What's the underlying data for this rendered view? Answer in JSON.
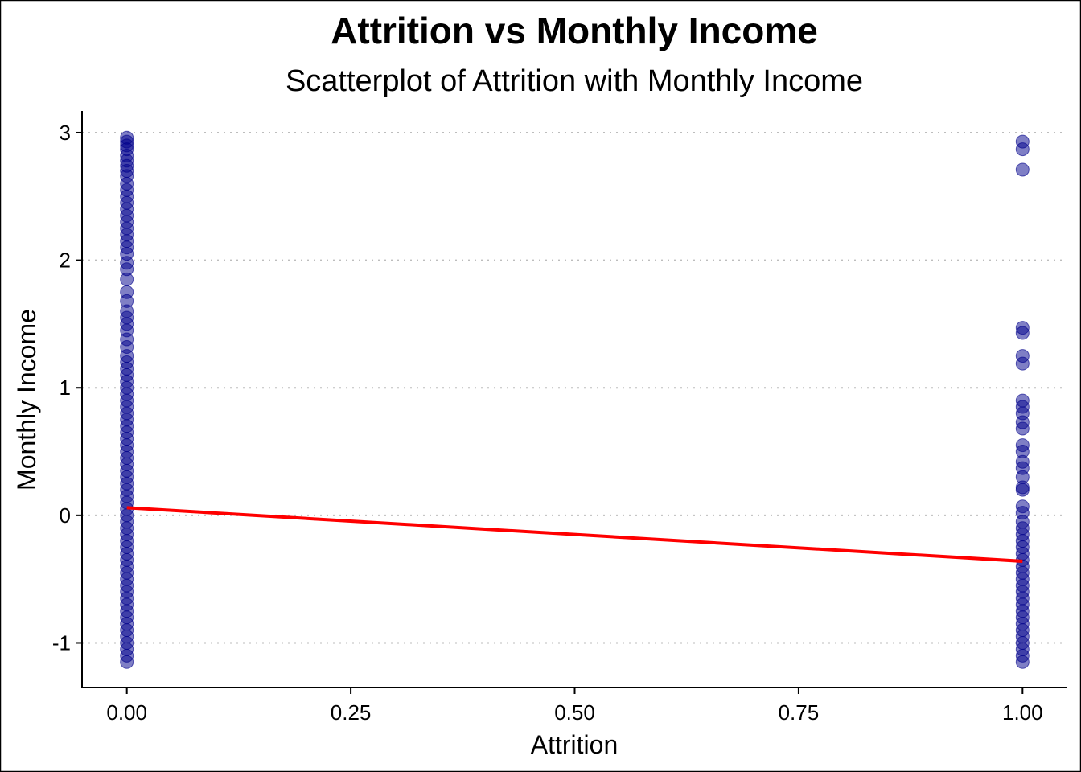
{
  "chart_data": {
    "type": "scatter",
    "title": "Attrition vs Monthly Income",
    "subtitle": "Scatterplot of Attrition with Monthly Income",
    "xlabel": "Attrition",
    "ylabel": "Monthly Income",
    "xlim": [
      -0.05,
      1.05
    ],
    "ylim": [
      -1.35,
      3.17
    ],
    "x_ticks": [
      0,
      0.25,
      0.5,
      0.75,
      1
    ],
    "x_tick_labels": [
      "0.00",
      "0.25",
      "0.50",
      "0.75",
      "1.00"
    ],
    "y_ticks": [
      -1,
      0,
      1,
      2,
      3
    ],
    "y_tick_labels": [
      "-1",
      "0",
      "1",
      "2",
      "3"
    ],
    "grid": "horizontal dotted",
    "point_color": "#00008B",
    "trend_color": "#FF0000",
    "series": [
      {
        "x_value": 0,
        "y": [
          2.96,
          2.93,
          2.9,
          2.87,
          2.82,
          2.78,
          2.74,
          2.7,
          2.66,
          2.6,
          2.55,
          2.5,
          2.45,
          2.4,
          2.35,
          2.3,
          2.25,
          2.2,
          2.15,
          2.1,
          2.05,
          1.98,
          1.93,
          1.85,
          1.75,
          1.68,
          1.6,
          1.55,
          1.5,
          1.45,
          1.38,
          1.32,
          1.25,
          1.2,
          1.15,
          1.1,
          1.05,
          1.0,
          0.95,
          0.9,
          0.85,
          0.8,
          0.75,
          0.7,
          0.65,
          0.6,
          0.55,
          0.5,
          0.45,
          0.4,
          0.35,
          0.3,
          0.25,
          0.2,
          0.15,
          0.1,
          0.05,
          0.0,
          -0.05,
          -0.1,
          -0.15,
          -0.2,
          -0.25,
          -0.3,
          -0.35,
          -0.4,
          -0.45,
          -0.5,
          -0.55,
          -0.6,
          -0.65,
          -0.7,
          -0.75,
          -0.8,
          -0.85,
          -0.9,
          -0.95,
          -1.0,
          -1.05,
          -1.1,
          -1.15
        ]
      },
      {
        "x_value": 1,
        "y": [
          2.93,
          2.87,
          2.71,
          1.47,
          1.43,
          1.25,
          1.19,
          0.9,
          0.85,
          0.8,
          0.73,
          0.68,
          0.55,
          0.5,
          0.42,
          0.37,
          0.3,
          0.22,
          0.2,
          0.07,
          0.02,
          -0.05,
          -0.1,
          -0.15,
          -0.2,
          -0.25,
          -0.3,
          -0.35,
          -0.4,
          -0.45,
          -0.5,
          -0.55,
          -0.6,
          -0.65,
          -0.7,
          -0.75,
          -0.8,
          -0.85,
          -0.9,
          -0.95,
          -1.0,
          -1.05,
          -1.1,
          -1.15
        ]
      }
    ],
    "trend_line": {
      "x": [
        0,
        1
      ],
      "y": [
        0.06,
        -0.36
      ]
    }
  }
}
